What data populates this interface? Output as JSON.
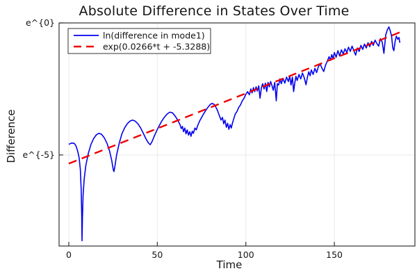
{
  "chart_data": {
    "type": "line",
    "title": "Absolute Difference in States Over Time",
    "xlabel": "Time",
    "ylabel": "Difference",
    "xlim": [
      -5.5,
      195.5
    ],
    "ylim": [
      -8.45,
      0
    ],
    "xticks": [
      0,
      50,
      100,
      150
    ],
    "yticks": [
      {
        "value": 0,
        "label": "e^{0}"
      },
      {
        "value": -5,
        "label": "e^{-5}"
      }
    ],
    "grid": true,
    "legend_position": "top-left",
    "colors": {
      "series1": "#0000ee",
      "series2": "#ee0000",
      "grid": "#e9e9e9",
      "frame": "#333333",
      "text": "#141414"
    },
    "note": "y values are natural log of absolute difference; y axis shown as e^{x}",
    "series": [
      {
        "name": "ln(difference in mode1)",
        "style": "solid",
        "color": "#0000ee",
        "points": [
          [
            0,
            -4.6
          ],
          [
            1.5,
            -4.55
          ],
          [
            3,
            -4.56
          ],
          [
            4,
            -4.65
          ],
          [
            5,
            -4.85
          ],
          [
            5.8,
            -5.1
          ],
          [
            6.5,
            -5.55
          ],
          [
            7.0,
            -6.3
          ],
          [
            7.3,
            -7.3
          ],
          [
            7.45,
            -8.25
          ],
          [
            7.7,
            -7.4
          ],
          [
            8.1,
            -6.5
          ],
          [
            8.7,
            -5.9
          ],
          [
            9.6,
            -5.4
          ],
          [
            11,
            -4.95
          ],
          [
            12.5,
            -4.6
          ],
          [
            14,
            -4.38
          ],
          [
            15.5,
            -4.24
          ],
          [
            17,
            -4.18
          ],
          [
            18.5,
            -4.22
          ],
          [
            20,
            -4.35
          ],
          [
            21.5,
            -4.55
          ],
          [
            23,
            -4.85
          ],
          [
            24.2,
            -5.2
          ],
          [
            25.1,
            -5.55
          ],
          [
            25.5,
            -5.63
          ],
          [
            26,
            -5.45
          ],
          [
            27,
            -5.0
          ],
          [
            28.5,
            -4.55
          ],
          [
            30,
            -4.2
          ],
          [
            31.5,
            -3.98
          ],
          [
            33,
            -3.82
          ],
          [
            34.5,
            -3.72
          ],
          [
            36,
            -3.68
          ],
          [
            37.5,
            -3.72
          ],
          [
            39,
            -3.82
          ],
          [
            40.5,
            -3.97
          ],
          [
            42,
            -4.17
          ],
          [
            43.5,
            -4.38
          ],
          [
            45,
            -4.55
          ],
          [
            46,
            -4.61
          ],
          [
            47,
            -4.5
          ],
          [
            48,
            -4.33
          ],
          [
            49.5,
            -4.1
          ],
          [
            51,
            -3.9
          ],
          [
            52.5,
            -3.72
          ],
          [
            54,
            -3.57
          ],
          [
            55.5,
            -3.45
          ],
          [
            57,
            -3.38
          ],
          [
            58.5,
            -3.4
          ],
          [
            60,
            -3.52
          ],
          [
            61.5,
            -3.68
          ],
          [
            62.8,
            -3.85
          ],
          [
            63.5,
            -4.0
          ],
          [
            64.2,
            -3.92
          ],
          [
            64.8,
            -4.12
          ],
          [
            65.5,
            -3.98
          ],
          [
            66.2,
            -4.2
          ],
          [
            66.9,
            -4.05
          ],
          [
            67.6,
            -4.25
          ],
          [
            68.3,
            -4.12
          ],
          [
            69,
            -4.29
          ],
          [
            69.7,
            -4.1
          ],
          [
            70.4,
            -4.18
          ],
          [
            71.2,
            -3.98
          ],
          [
            72,
            -4.05
          ],
          [
            72.8,
            -3.88
          ],
          [
            74,
            -3.7
          ],
          [
            75.5,
            -3.52
          ],
          [
            77,
            -3.35
          ],
          [
            78.5,
            -3.2
          ],
          [
            80,
            -3.08
          ],
          [
            81,
            -3.05
          ],
          [
            82,
            -3.08
          ],
          [
            83,
            -3.18
          ],
          [
            84,
            -3.32
          ],
          [
            85,
            -3.5
          ],
          [
            86,
            -3.68
          ],
          [
            86.8,
            -3.58
          ],
          [
            87.5,
            -3.82
          ],
          [
            88.2,
            -3.68
          ],
          [
            89,
            -3.95
          ],
          [
            89.7,
            -3.8
          ],
          [
            90.4,
            -4.03
          ],
          [
            91.1,
            -3.85
          ],
          [
            91.8,
            -3.98
          ],
          [
            92.5,
            -3.78
          ],
          [
            93.3,
            -3.6
          ],
          [
            94,
            -3.45
          ],
          [
            95,
            -3.35
          ],
          [
            96,
            -3.2
          ],
          [
            97,
            -3.1
          ],
          [
            98,
            -2.95
          ],
          [
            99,
            -2.85
          ],
          [
            100,
            -2.7
          ],
          [
            101,
            -2.6
          ],
          [
            102,
            -2.72
          ],
          [
            102.8,
            -2.5
          ],
          [
            103.5,
            -2.65
          ],
          [
            104.3,
            -2.45
          ],
          [
            105,
            -2.6
          ],
          [
            105.8,
            -2.42
          ],
          [
            106.5,
            -2.58
          ],
          [
            107.3,
            -2.38
          ],
          [
            108,
            -2.85
          ],
          [
            108.8,
            -2.45
          ],
          [
            109.5,
            -2.3
          ],
          [
            110.3,
            -2.5
          ],
          [
            111,
            -2.28
          ],
          [
            111.8,
            -2.6
          ],
          [
            112.5,
            -2.25
          ],
          [
            113.3,
            -2.42
          ],
          [
            114,
            -2.22
          ],
          [
            114.8,
            -2.38
          ],
          [
            115.5,
            -2.55
          ],
          [
            116.3,
            -2.25
          ],
          [
            117.2,
            -2.95
          ],
          [
            117.8,
            -2.3
          ],
          [
            118.5,
            -2.35
          ],
          [
            119.3,
            -2.12
          ],
          [
            120,
            -2.3
          ],
          [
            121,
            -2.1
          ],
          [
            122,
            -2.28
          ],
          [
            123,
            -2.05
          ],
          [
            124,
            -2.22
          ],
          [
            124.8,
            -2.02
          ],
          [
            125.5,
            -2.35
          ],
          [
            126.3,
            -2.05
          ],
          [
            127,
            -2.6
          ],
          [
            127.6,
            -2.3
          ],
          [
            128.3,
            -2.02
          ],
          [
            129,
            -2.18
          ],
          [
            130,
            -1.95
          ],
          [
            131,
            -2.12
          ],
          [
            132,
            -1.9
          ],
          [
            133,
            -2.08
          ],
          [
            134,
            -2.34
          ],
          [
            134.8,
            -2.05
          ],
          [
            135.5,
            -1.85
          ],
          [
            136.3,
            -2.0
          ],
          [
            137,
            -1.78
          ],
          [
            138,
            -1.95
          ],
          [
            139,
            -1.72
          ],
          [
            140,
            -1.88
          ],
          [
            141,
            -1.65
          ],
          [
            142,
            -1.55
          ],
          [
            143,
            -1.72
          ],
          [
            144,
            -1.84
          ],
          [
            145,
            -1.6
          ],
          [
            146,
            -1.45
          ],
          [
            147,
            -1.28
          ],
          [
            147.8,
            -1.42
          ],
          [
            148.5,
            -1.2
          ],
          [
            149.3,
            -1.35
          ],
          [
            150,
            -1.12
          ],
          [
            151,
            -1.3
          ],
          [
            152,
            -1.05
          ],
          [
            153,
            -1.25
          ],
          [
            154,
            -1.02
          ],
          [
            155,
            -1.18
          ],
          [
            156,
            -0.98
          ],
          [
            157,
            -1.12
          ],
          [
            158,
            -0.92
          ],
          [
            159,
            -1.08
          ],
          [
            160,
            -0.88
          ],
          [
            161,
            -1.05
          ],
          [
            162,
            -1.22
          ],
          [
            163,
            -0.95
          ],
          [
            164,
            -1.08
          ],
          [
            165,
            -0.85
          ],
          [
            166,
            -1.0
          ],
          [
            167,
            -0.8
          ],
          [
            168,
            -0.95
          ],
          [
            169,
            -0.75
          ],
          [
            170,
            -0.9
          ],
          [
            171,
            -0.7
          ],
          [
            172,
            -0.85
          ],
          [
            173,
            -0.65
          ],
          [
            174,
            -0.78
          ],
          [
            175,
            -0.88
          ],
          [
            176,
            -0.6
          ],
          [
            177,
            -0.72
          ],
          [
            178,
            -1.15
          ],
          [
            179,
            -0.45
          ],
          [
            180,
            -0.25
          ],
          [
            180.8,
            -0.15
          ],
          [
            181.5,
            -0.28
          ],
          [
            182.3,
            -0.5
          ],
          [
            183,
            -0.95
          ],
          [
            183.6,
            -1.05
          ],
          [
            184.3,
            -0.7
          ],
          [
            185,
            -0.5
          ],
          [
            185.8,
            -0.62
          ],
          [
            186.5,
            -0.55
          ],
          [
            187,
            -0.75
          ]
        ]
      },
      {
        "name": "exp(0.0266*t + -5.3288)",
        "style": "dashed",
        "color": "#ee0000",
        "slope": 0.0266,
        "intercept": -5.3288,
        "points": [
          [
            0,
            -5.3288
          ],
          [
            187,
            -0.3546
          ]
        ]
      }
    ]
  }
}
